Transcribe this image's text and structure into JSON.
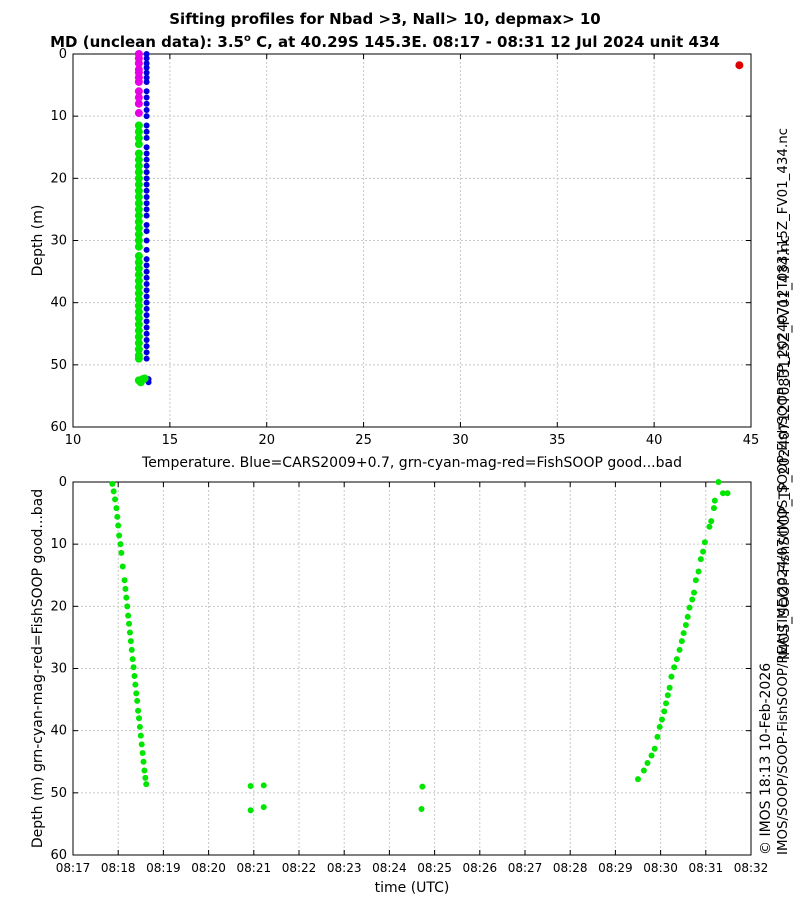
{
  "header": {
    "title_line1": "Sifting profiles for Nbad >3, Nall> 10, depmax> 10",
    "title_line2_prefix": "MD (unclean data): 3.5",
    "title_line2_sup": "o",
    "title_line2_suffix": " C, at 40.29S 145.3E. 08:17 - 08:31 12 Jul 2024 unit 434"
  },
  "side_text": {
    "filename": "IMOS_SOOP-FishSOOP_TP_20240712T083115Z_FV01_434.nc",
    "copyright": "© IMOS 18:13 10-Feb-2026",
    "path": "IMOS/SOOP/SOOP-FishSOOP/REALTIME/2024/07/IMOS_SOOP-FishSOOP_TP_20240712T083115Z_FV01_434.nc"
  },
  "colors": {
    "blue": "#0000dd",
    "green": "#00e600",
    "magenta": "#e600e6",
    "red": "#dd0000",
    "grid": "#c8c8c8"
  },
  "chart_data": [
    {
      "type": "scatter",
      "title": "Temperature profile",
      "xlabel": "Temperature. Blue=CARS2009+0.7, grn-cyan-mag-red=FishSOOP good...bad",
      "ylabel": "Depth (m)",
      "xlim": [
        10,
        45
      ],
      "ylim": [
        0,
        60
      ],
      "y_inverted": true,
      "xticks": [
        "10",
        "15",
        "20",
        "25",
        "30",
        "35",
        "40",
        "45"
      ],
      "yticks": [
        "0",
        "10",
        "20",
        "30",
        "40",
        "50",
        "60"
      ],
      "grid": true,
      "series": [
        {
          "name": "CARS2009+0.7",
          "color": "blue",
          "marker_size": 3,
          "points": [
            [
              13.8,
              0
            ],
            [
              13.8,
              0.7
            ],
            [
              13.8,
              1.5
            ],
            [
              13.8,
              2.2
            ],
            [
              13.8,
              3
            ],
            [
              13.8,
              3.8
            ],
            [
              13.8,
              4.5
            ],
            [
              13.8,
              6
            ],
            [
              13.8,
              7
            ],
            [
              13.8,
              8
            ],
            [
              13.8,
              9
            ],
            [
              13.8,
              10
            ],
            [
              13.8,
              11.5
            ],
            [
              13.8,
              12.5
            ],
            [
              13.8,
              13.5
            ],
            [
              13.8,
              15
            ],
            [
              13.8,
              16
            ],
            [
              13.8,
              17
            ],
            [
              13.8,
              18
            ],
            [
              13.8,
              19
            ],
            [
              13.8,
              20
            ],
            [
              13.8,
              21
            ],
            [
              13.8,
              22
            ],
            [
              13.8,
              23
            ],
            [
              13.8,
              24
            ],
            [
              13.8,
              25
            ],
            [
              13.8,
              26
            ],
            [
              13.8,
              27.5
            ],
            [
              13.8,
              28.5
            ],
            [
              13.8,
              30
            ],
            [
              13.8,
              31.5
            ],
            [
              13.8,
              33
            ],
            [
              13.8,
              34
            ],
            [
              13.8,
              35
            ],
            [
              13.8,
              36
            ],
            [
              13.8,
              37
            ],
            [
              13.8,
              38
            ],
            [
              13.8,
              39
            ],
            [
              13.8,
              40
            ],
            [
              13.8,
              41
            ],
            [
              13.8,
              42
            ],
            [
              13.8,
              43
            ],
            [
              13.8,
              44
            ],
            [
              13.8,
              45
            ],
            [
              13.8,
              46
            ],
            [
              13.8,
              47
            ],
            [
              13.8,
              48
            ],
            [
              13.8,
              49
            ],
            [
              13.9,
              52.3
            ],
            [
              13.9,
              52.8
            ]
          ]
        },
        {
          "name": "FishSOOP good",
          "color": "green",
          "marker_size": 4,
          "points": [
            [
              13.4,
              11.5
            ],
            [
              13.4,
              12.5
            ],
            [
              13.4,
              13.5
            ],
            [
              13.4,
              14.5
            ],
            [
              13.4,
              16
            ],
            [
              13.4,
              17
            ],
            [
              13.4,
              18
            ],
            [
              13.4,
              19
            ],
            [
              13.4,
              20
            ],
            [
              13.4,
              21
            ],
            [
              13.4,
              22
            ],
            [
              13.4,
              23
            ],
            [
              13.4,
              24
            ],
            [
              13.4,
              25
            ],
            [
              13.4,
              26
            ],
            [
              13.4,
              27
            ],
            [
              13.4,
              28
            ],
            [
              13.4,
              29
            ],
            [
              13.4,
              30
            ],
            [
              13.4,
              31
            ],
            [
              13.4,
              32.5
            ],
            [
              13.4,
              33.5
            ],
            [
              13.4,
              34.5
            ],
            [
              13.4,
              35.5
            ],
            [
              13.4,
              36.5
            ],
            [
              13.4,
              37.5
            ],
            [
              13.4,
              38.5
            ],
            [
              13.4,
              39.5
            ],
            [
              13.4,
              40.5
            ],
            [
              13.4,
              41.5
            ],
            [
              13.4,
              42.5
            ],
            [
              13.4,
              43.5
            ],
            [
              13.4,
              44.5
            ],
            [
              13.4,
              45.5
            ],
            [
              13.4,
              46.5
            ],
            [
              13.4,
              47.5
            ],
            [
              13.4,
              48.5
            ],
            [
              13.4,
              49
            ],
            [
              13.4,
              52.5
            ],
            [
              13.5,
              52.8
            ],
            [
              13.6,
              52.3
            ],
            [
              13.7,
              52.2
            ]
          ]
        },
        {
          "name": "FishSOOP questionable",
          "color": "magenta",
          "marker_size": 4,
          "points": [
            [
              13.4,
              0
            ],
            [
              13.4,
              0.7
            ],
            [
              13.4,
              1.5
            ],
            [
              13.4,
              2.5
            ],
            [
              13.4,
              3
            ],
            [
              13.4,
              3.8
            ],
            [
              13.4,
              4.5
            ],
            [
              13.4,
              6
            ],
            [
              13.4,
              7
            ],
            [
              13.4,
              8
            ],
            [
              13.4,
              9.5
            ]
          ]
        },
        {
          "name": "FishSOOP bad",
          "color": "red",
          "marker_size": 4,
          "points": [
            [
              44.4,
              1.8
            ]
          ]
        }
      ]
    },
    {
      "type": "scatter",
      "title": "Depth vs time",
      "xlabel": "time (UTC)",
      "ylabel": "Depth (m) grn-cyan-mag-red=FishSOOP good...bad",
      "xlim": [
        0,
        15
      ],
      "x_units": "minutes after 08:17",
      "ylim": [
        0,
        60
      ],
      "y_inverted": true,
      "xticks": [
        "08:17",
        "08:18",
        "08:19",
        "08:20",
        "08:21",
        "08:22",
        "08:23",
        "08:24",
        "08:25",
        "08:26",
        "08:27",
        "08:28",
        "08:29",
        "08:30",
        "08:31",
        "08:32"
      ],
      "yticks": [
        "0",
        "10",
        "20",
        "30",
        "40",
        "50",
        "60"
      ],
      "grid": true,
      "series": [
        {
          "name": "FishSOOP good",
          "color": "green",
          "marker_size": 3,
          "points": [
            [
              0.87,
              0.3
            ],
            [
              0.9,
              1.5
            ],
            [
              0.93,
              2.8
            ],
            [
              0.96,
              4.2
            ],
            [
              0.98,
              5.6
            ],
            [
              1.0,
              7.0
            ],
            [
              1.02,
              8.6
            ],
            [
              1.05,
              10
            ],
            [
              1.07,
              11.4
            ],
            [
              1.1,
              13.6
            ],
            [
              1.14,
              15.8
            ],
            [
              1.16,
              17.2
            ],
            [
              1.18,
              18.6
            ],
            [
              1.2,
              20
            ],
            [
              1.22,
              21.5
            ],
            [
              1.24,
              22.8
            ],
            [
              1.26,
              24.2
            ],
            [
              1.28,
              25.6
            ],
            [
              1.3,
              27
            ],
            [
              1.32,
              28.5
            ],
            [
              1.34,
              29.8
            ],
            [
              1.36,
              31.2
            ],
            [
              1.38,
              32.6
            ],
            [
              1.4,
              34
            ],
            [
              1.42,
              35.2
            ],
            [
              1.44,
              36.8
            ],
            [
              1.46,
              38
            ],
            [
              1.48,
              39.4
            ],
            [
              1.5,
              40.8
            ],
            [
              1.52,
              42.2
            ],
            [
              1.54,
              43.6
            ],
            [
              1.56,
              45
            ],
            [
              1.58,
              46.4
            ],
            [
              1.6,
              47.6
            ],
            [
              1.62,
              48.6
            ],
            [
              3.93,
              48.9
            ],
            [
              3.93,
              52.8
            ],
            [
              4.22,
              48.8
            ],
            [
              4.22,
              52.3
            ],
            [
              7.73,
              49
            ],
            [
              7.71,
              52.6
            ],
            [
              12.5,
              47.8
            ],
            [
              12.63,
              46.4
            ],
            [
              12.71,
              45.2
            ],
            [
              12.8,
              44
            ],
            [
              12.87,
              42.9
            ],
            [
              12.93,
              41
            ],
            [
              12.98,
              39.4
            ],
            [
              13.03,
              38.2
            ],
            [
              13.08,
              36.9
            ],
            [
              13.12,
              35.6
            ],
            [
              13.16,
              34.3
            ],
            [
              13.2,
              33.1
            ],
            [
              13.24,
              31.3
            ],
            [
              13.3,
              29.8
            ],
            [
              13.36,
              28.5
            ],
            [
              13.42,
              27
            ],
            [
              13.47,
              25.6
            ],
            [
              13.51,
              24.3
            ],
            [
              13.56,
              23
            ],
            [
              13.6,
              21.7
            ],
            [
              13.64,
              20.2
            ],
            [
              13.7,
              18.9
            ],
            [
              13.74,
              17.8
            ],
            [
              13.78,
              15.8
            ],
            [
              13.84,
              14.4
            ],
            [
              13.89,
              12.4
            ],
            [
              13.94,
              11.2
            ],
            [
              13.98,
              9.7
            ],
            [
              14.08,
              7.2
            ],
            [
              14.12,
              6.3
            ],
            [
              14.18,
              4.2
            ],
            [
              14.2,
              3
            ],
            [
              14.28,
              0
            ],
            [
              14.38,
              1.8
            ],
            [
              14.48,
              1.8
            ]
          ]
        }
      ]
    }
  ]
}
